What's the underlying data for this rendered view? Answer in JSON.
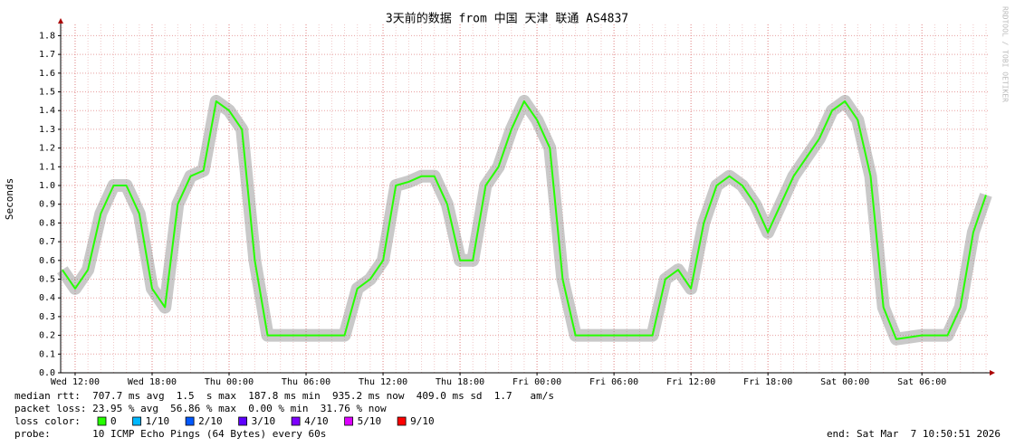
{
  "chart_data": {
    "type": "line",
    "title": "3天前的数据 from 中国 天津 联通 AS4837",
    "y_label": "Seconds",
    "watermark": "RRDTOOL / TOBI OETIKER",
    "categories": [
      null,
      "Wed 12:00",
      null,
      null,
      null,
      null,
      null,
      "Wed 18:00",
      null,
      null,
      null,
      null,
      null,
      "Thu 00:00",
      null,
      null,
      null,
      null,
      null,
      "Thu 06:00",
      null,
      null,
      null,
      null,
      null,
      "Thu 12:00",
      null,
      null,
      null,
      null,
      null,
      "Thu 18:00",
      null,
      null,
      null,
      null,
      null,
      "Fri 00:00",
      null,
      null,
      null,
      null,
      null,
      "Fri 06:00",
      null,
      null,
      null,
      null,
      null,
      "Fri 12:00",
      null,
      null,
      null,
      null,
      null,
      "Fri 18:00",
      null,
      null,
      null,
      null,
      null,
      "Sat 00:00",
      null,
      null,
      null,
      null,
      null,
      "Sat 06:00",
      null,
      null,
      null,
      null,
      null
    ],
    "series": [
      {
        "name": "median rtt",
        "color": "#26ff00",
        "values": [
          0.55,
          0.45,
          0.55,
          0.85,
          1.0,
          1.0,
          0.85,
          0.45,
          0.35,
          0.9,
          1.05,
          1.08,
          1.45,
          1.4,
          1.3,
          0.6,
          0.2,
          0.2,
          0.2,
          0.2,
          0.2,
          0.2,
          0.2,
          0.45,
          0.5,
          0.6,
          1.0,
          1.02,
          1.05,
          1.05,
          0.9,
          0.6,
          0.6,
          1.0,
          1.1,
          1.3,
          1.45,
          1.35,
          1.2,
          0.5,
          0.2,
          0.2,
          0.2,
          0.2,
          0.2,
          0.2,
          0.2,
          0.5,
          0.55,
          0.45,
          0.8,
          1.0,
          1.05,
          1.0,
          0.9,
          0.75,
          0.9,
          1.05,
          1.15,
          1.25,
          1.4,
          1.45,
          1.35,
          1.05,
          0.35,
          0.18,
          0.19,
          0.2,
          0.2,
          0.2,
          0.35,
          0.75,
          0.95
        ]
      }
    ],
    "ylim": [
      0,
      1.86
    ],
    "yticks": [
      {
        "value": 0,
        "label": "0.0"
      },
      0.1,
      0.2,
      0.3,
      0.4,
      0.5,
      0.6,
      0.7,
      0.8,
      0.9,
      {
        "value": 1,
        "label": "1.0"
      },
      1.1,
      1.2,
      1.3,
      1.4,
      1.5,
      1.6,
      1.7,
      1.8
    ],
    "grid": true,
    "stats": [
      "median rtt:  707.7 ms avg  1.5  s max  187.8 ms min  935.2 ms now  409.0 ms sd  1.7   am/s",
      "packet loss: 23.95 % avg  56.86 % max  0.00 % min  31.76 % now"
    ],
    "loss_legend": {
      "label": "loss color:",
      "items": [
        {
          "name": "0",
          "color": "#26ff00"
        },
        {
          "name": "1/10",
          "color": "#00b8ff"
        },
        {
          "name": "2/10",
          "color": "#0059ff"
        },
        {
          "name": "3/10",
          "color": "#5e00ff"
        },
        {
          "name": "4/10",
          "color": "#7e00ff"
        },
        {
          "name": "5/10",
          "color": "#dd00ff"
        },
        {
          "name": "9/10",
          "color": "#ff0000"
        }
      ]
    },
    "probe": "probe:       10 ICMP Echo Pings (64 Bytes) every 60s",
    "end": "end: Sat Mar  7 10:50:51 2026"
  }
}
